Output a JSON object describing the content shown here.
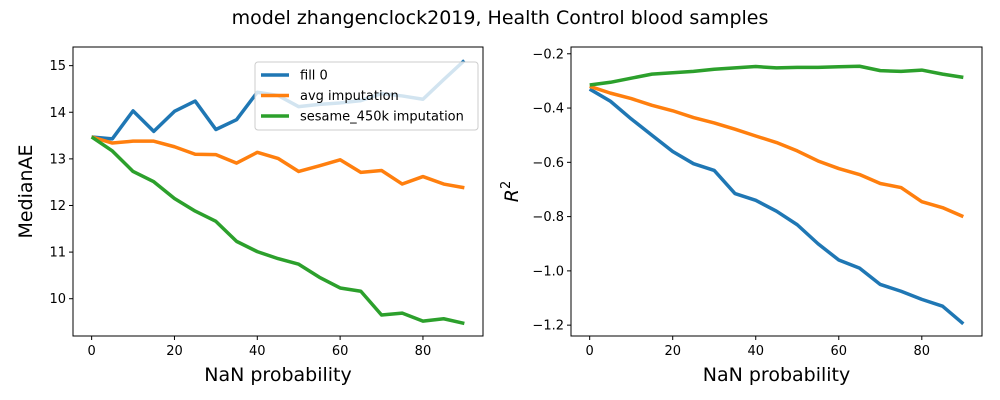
{
  "figure": {
    "title": "model zhangenclock2019, Health Control blood samples"
  },
  "colors": {
    "fill_0": "#1f77b4",
    "avg_imputation": "#ff7f0e",
    "sesame_imputation": "#2ca02c"
  },
  "chart_data": [
    {
      "type": "line",
      "xlabel": "NaN probability",
      "ylabel": "MedianAE",
      "xlim": [
        -4.5,
        94.5
      ],
      "ylim": [
        9.2,
        15.4
      ],
      "xticks": [
        0,
        20,
        40,
        60,
        80
      ],
      "yticks": [
        10,
        11,
        12,
        13,
        14,
        15
      ],
      "grid": false,
      "legend": "top-right",
      "x": [
        0,
        5,
        10,
        15,
        20,
        25,
        30,
        35,
        40,
        45,
        50,
        55,
        60,
        65,
        70,
        75,
        80,
        85,
        90
      ],
      "series": [
        {
          "name": "fill 0",
          "color": "#1f77b4",
          "values": [
            13.47,
            13.43,
            14.03,
            13.59,
            14.02,
            14.24,
            13.63,
            13.84,
            14.43,
            14.36,
            14.12,
            14.17,
            14.2,
            14.25,
            14.4,
            14.35,
            14.28,
            14.7,
            15.11
          ]
        },
        {
          "name": "avg imputation",
          "color": "#ff7f0e",
          "values": [
            13.47,
            13.34,
            13.38,
            13.38,
            13.26,
            13.1,
            13.09,
            12.91,
            13.14,
            13.01,
            12.73,
            12.85,
            12.98,
            12.71,
            12.75,
            12.46,
            12.62,
            12.46,
            12.38
          ]
        },
        {
          "name": "sesame_450k imputation",
          "color": "#2ca02c",
          "values": [
            13.47,
            13.17,
            12.73,
            12.51,
            12.15,
            11.88,
            11.66,
            11.23,
            11.01,
            10.86,
            10.74,
            10.46,
            10.23,
            10.16,
            9.65,
            9.69,
            9.52,
            9.57,
            9.47
          ]
        }
      ]
    },
    {
      "type": "line",
      "xlabel": "NaN probability",
      "ylabel_base": "R",
      "ylabel_sup": "2",
      "xlim": [
        -4.5,
        94.5
      ],
      "ylim": [
        -1.24,
        -0.175
      ],
      "xticks": [
        0,
        20,
        40,
        60,
        80
      ],
      "yticks": [
        -1.2,
        -1.0,
        -0.8,
        -0.6,
        -0.4,
        -0.2
      ],
      "ytick_labels": [
        "−1.2",
        "−1.0",
        "−0.8",
        "−0.6",
        "−0.4",
        "−0.2"
      ],
      "grid": false,
      "x": [
        0,
        5,
        10,
        15,
        20,
        25,
        30,
        35,
        40,
        45,
        50,
        55,
        60,
        65,
        70,
        75,
        80,
        85,
        90
      ],
      "series": [
        {
          "color": "#1f77b4",
          "values": [
            -0.33,
            -0.375,
            -0.44,
            -0.5,
            -0.56,
            -0.605,
            -0.63,
            -0.715,
            -0.74,
            -0.78,
            -0.83,
            -0.9,
            -0.96,
            -0.99,
            -1.05,
            -1.075,
            -1.105,
            -1.13,
            -1.195
          ]
        },
        {
          "color": "#ff7f0e",
          "values": [
            -0.32,
            -0.345,
            -0.365,
            -0.39,
            -0.41,
            -0.435,
            -0.455,
            -0.478,
            -0.503,
            -0.527,
            -0.558,
            -0.595,
            -0.623,
            -0.645,
            -0.678,
            -0.693,
            -0.745,
            -0.767,
            -0.8
          ]
        },
        {
          "color": "#2ca02c",
          "values": [
            -0.315,
            -0.305,
            -0.29,
            -0.275,
            -0.27,
            -0.265,
            -0.257,
            -0.252,
            -0.247,
            -0.252,
            -0.25,
            -0.25,
            -0.248,
            -0.246,
            -0.262,
            -0.265,
            -0.26,
            -0.275,
            -0.287
          ]
        }
      ]
    }
  ]
}
